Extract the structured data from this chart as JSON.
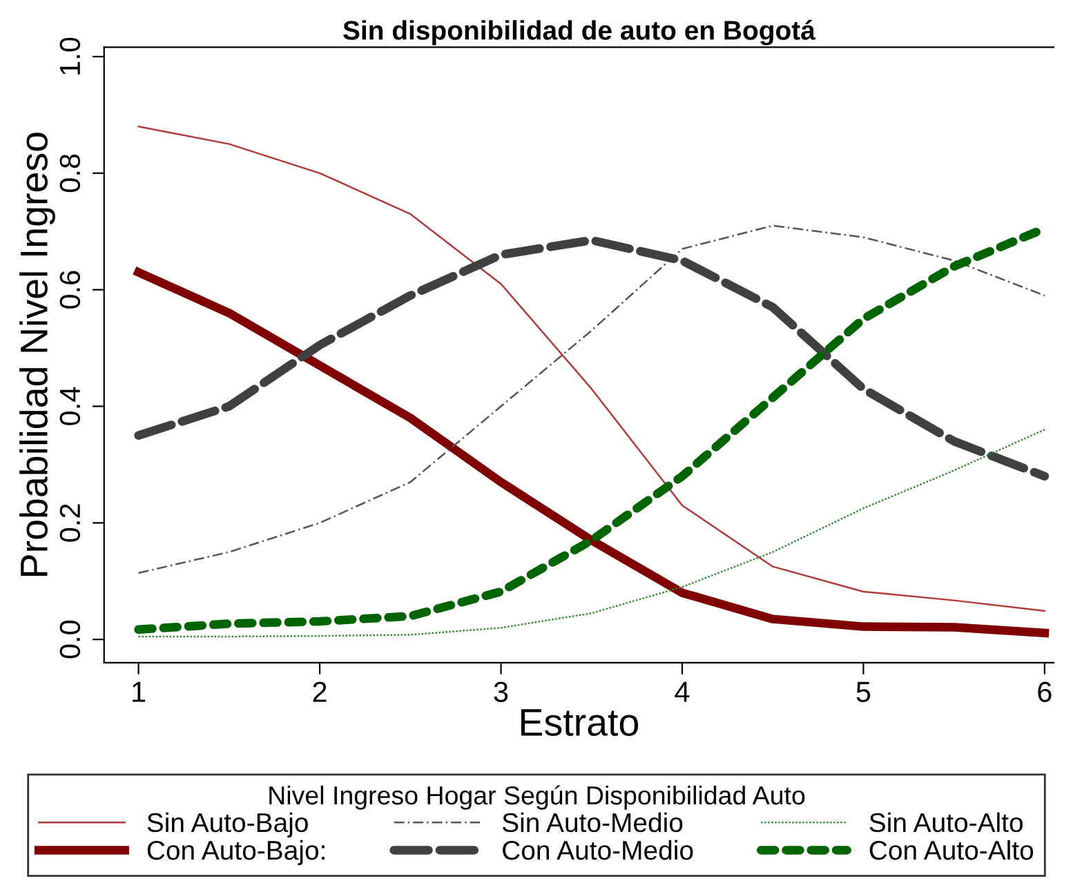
{
  "chart_data": {
    "type": "line",
    "title": "Sin disponibilidad de auto en Bogotá",
    "xlabel": "Estrato",
    "ylabel": "Probabilidad Nivel Ingreso",
    "legend_title": "Nivel Ingreso Hogar Según Disponibilidad Auto",
    "legend": "bottom",
    "grid": false,
    "marker": "none",
    "x": [
      1,
      1.5,
      2,
      2.5,
      3,
      3.5,
      4,
      4.5,
      5,
      5.5,
      6
    ],
    "xlim": [
      0.81,
      6.05
    ],
    "ylim": [
      -0.04,
      1.016
    ],
    "xticks": [
      1,
      2,
      3,
      4,
      5,
      6
    ],
    "yticks": [
      {
        "value": 0,
        "label": "0.0"
      },
      {
        "value": 0.2,
        "label": "0.2"
      },
      {
        "value": 0.4,
        "label": "0.4"
      },
      {
        "value": 0.6,
        "label": "0.6"
      },
      {
        "value": 0.8,
        "label": "0.8"
      },
      {
        "value": 1,
        "label": "1.0"
      }
    ],
    "series": [
      {
        "name": "Sin Auto-Bajo",
        "color": "#b03a3a",
        "line_style": "solid",
        "values": [
          0.88,
          0.85,
          0.8,
          0.73,
          0.61,
          0.43,
          0.23,
          0.125,
          0.082,
          0.067,
          0.049
        ]
      },
      {
        "name": "Con Auto-Bajo:",
        "color": "#800000",
        "line_style": "solid",
        "values": [
          0.63,
          0.56,
          0.47,
          0.38,
          0.27,
          0.17,
          0.08,
          0.035,
          0.022,
          0.021,
          0.011
        ]
      },
      {
        "name": "Sin Auto-Medio",
        "color": "#555555",
        "line_style": "dashed",
        "values": [
          0.114,
          0.15,
          0.2,
          0.27,
          0.4,
          0.53,
          0.67,
          0.71,
          0.69,
          0.65,
          0.59
        ]
      },
      {
        "name": "Con Auto-Medio",
        "color": "#404040",
        "line_style": "dashed",
        "values": [
          0.35,
          0.4,
          0.505,
          0.59,
          0.66,
          0.685,
          0.65,
          0.57,
          0.43,
          0.34,
          0.28
        ]
      },
      {
        "name": "Sin Auto-Alto",
        "color": "#2e8b2e",
        "line_style": "dotted",
        "values": [
          0.005,
          0.005,
          0.006,
          0.008,
          0.02,
          0.045,
          0.09,
          0.15,
          0.225,
          0.29,
          0.36
        ]
      },
      {
        "name": "Con Auto-Alto",
        "color": "#006400",
        "line_style": "dashed",
        "values": [
          0.017,
          0.027,
          0.031,
          0.04,
          0.082,
          0.17,
          0.28,
          0.415,
          0.55,
          0.64,
          0.705
        ]
      }
    ]
  }
}
